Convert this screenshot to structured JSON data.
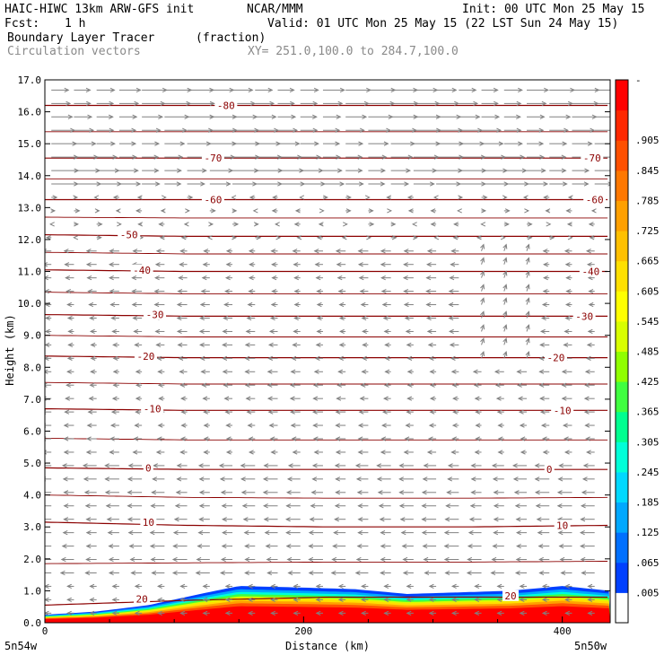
{
  "header": {
    "model": "HAIC-HIWC 13km ARW-GFS init",
    "org": "NCAR/MMM",
    "init": "Init: 00 UTC Mon 25 May 15",
    "fcst_label": "Fcst:",
    "fcst_value": "1 h",
    "valid": "Valid: 01 UTC Mon 25 May 15 (22 LST Sun 24 May 15)",
    "field_name": "Boundary Layer Tracer",
    "field_units": "(fraction)",
    "vector_name": "Circulation vectors",
    "xsection": "XY= 251.0,100.0 to 284.7,100.0"
  },
  "chart_data": {
    "type": "heatmap",
    "title": "Boundary Layer Tracer",
    "units": "(fraction)",
    "xlabel": "Distance (km)",
    "ylabel": "Height (km)",
    "xlim": [
      0,
      437
    ],
    "ylim": [
      0,
      17
    ],
    "x_ticks": [
      0,
      200,
      400
    ],
    "y_ticks": [
      "0.0",
      "1.0",
      "2.0",
      "3.0",
      "4.0",
      "5.0",
      "6.0",
      "7.0",
      "8.0",
      "9.0",
      "10.0",
      "11.0",
      "12.0",
      "13.0",
      "14.0",
      "15.0",
      "16.0",
      "17.0"
    ],
    "x_endpoint_labels": [
      "5n54w",
      "5n50w"
    ],
    "colorbar": {
      "labels": [
        ".005",
        ".065",
        ".125",
        ".185",
        ".245",
        ".305",
        ".365",
        ".425",
        ".485",
        ".545",
        ".605",
        ".665",
        ".725",
        ".785",
        ".845",
        ".905"
      ],
      "top_label": "-",
      "colors": [
        "#ffffff",
        "#0040ff",
        "#0070ff",
        "#00a8ff",
        "#00d8ff",
        "#00ffd8",
        "#00ff90",
        "#40ff40",
        "#90ff00",
        "#d8ff00",
        "#ffff00",
        "#ffe000",
        "#ffc000",
        "#ffa000",
        "#ff7800",
        "#ff5000",
        "#ff2800",
        "#ff0000"
      ]
    },
    "temperature_contours": {
      "units": "C",
      "levels": [
        {
          "value": 20,
          "heights_km": [
            0.55,
            0.7,
            0.8,
            0.8,
            0.8
          ]
        },
        {
          "value": 10,
          "heights_km": [
            3.15,
            3.05,
            3.0,
            3.0,
            3.05
          ]
        },
        {
          "value": 0,
          "heights_km": [
            4.85,
            4.8,
            4.8,
            4.8,
            4.8
          ]
        },
        {
          "value": -10,
          "heights_km": [
            6.7,
            6.65,
            6.65,
            6.65,
            6.65
          ]
        },
        {
          "value": -20,
          "heights_km": [
            8.35,
            8.3,
            8.3,
            8.3,
            8.3
          ]
        },
        {
          "value": -30,
          "heights_km": [
            9.65,
            9.6,
            9.6,
            9.6,
            9.6
          ]
        },
        {
          "value": -40,
          "heights_km": [
            11.05,
            11.0,
            11.0,
            11.0,
            11.0
          ]
        },
        {
          "value": -50,
          "heights_km": [
            12.15,
            12.1,
            12.1,
            12.1,
            12.1
          ]
        },
        {
          "value": -60,
          "heights_km": [
            13.25,
            13.25,
            13.25,
            13.25,
            13.25
          ]
        },
        {
          "value": -70,
          "heights_km": [
            14.55,
            14.55,
            14.55,
            14.55,
            14.55
          ]
        },
        {
          "value": -80,
          "heights_km": [
            16.2,
            16.2,
            16.2,
            16.2,
            16.2
          ]
        }
      ],
      "labels": [
        {
          "text": "20",
          "x_km": 75,
          "y_km": 0.75
        },
        {
          "text": "20",
          "x_km": 360,
          "y_km": 0.85
        },
        {
          "text": "10",
          "x_km": 80,
          "y_km": 3.15
        },
        {
          "text": "10",
          "x_km": 400,
          "y_km": 3.05
        },
        {
          "text": "0",
          "x_km": 80,
          "y_km": 4.85
        },
        {
          "text": "0",
          "x_km": 390,
          "y_km": 4.8
        },
        {
          "text": "-10",
          "x_km": 83,
          "y_km": 6.7
        },
        {
          "text": "-10",
          "x_km": 400,
          "y_km": 6.65
        },
        {
          "text": "-20",
          "x_km": 78,
          "y_km": 8.35
        },
        {
          "text": "-20",
          "x_km": 395,
          "y_km": 8.3
        },
        {
          "text": "-30",
          "x_km": 85,
          "y_km": 9.65
        },
        {
          "text": "-30",
          "x_km": 417,
          "y_km": 9.6
        },
        {
          "text": "-40",
          "x_km": 75,
          "y_km": 11.05
        },
        {
          "text": "-40",
          "x_km": 422,
          "y_km": 11.0
        },
        {
          "text": "-50",
          "x_km": 65,
          "y_km": 12.15
        },
        {
          "text": "-60",
          "x_km": 130,
          "y_km": 13.25
        },
        {
          "text": "-60",
          "x_km": 425,
          "y_km": 13.25
        },
        {
          "text": "-70",
          "x_km": 130,
          "y_km": 14.55
        },
        {
          "text": "-70",
          "x_km": 423,
          "y_km": 14.55
        },
        {
          "text": "-80",
          "x_km": 140,
          "y_km": 16.2
        }
      ]
    },
    "tracer_profile": {
      "x_km": [
        0,
        40,
        80,
        120,
        150,
        200,
        240,
        280,
        320,
        360,
        400,
        437
      ],
      "top_km": [
        0.25,
        0.35,
        0.55,
        0.9,
        1.15,
        1.1,
        1.05,
        0.9,
        0.95,
        1.0,
        1.15,
        1.0
      ]
    },
    "wind": {
      "description": "Circulation vectors: westerly aloft, easterly below ~13 km",
      "max_speed_km": 25
    }
  }
}
